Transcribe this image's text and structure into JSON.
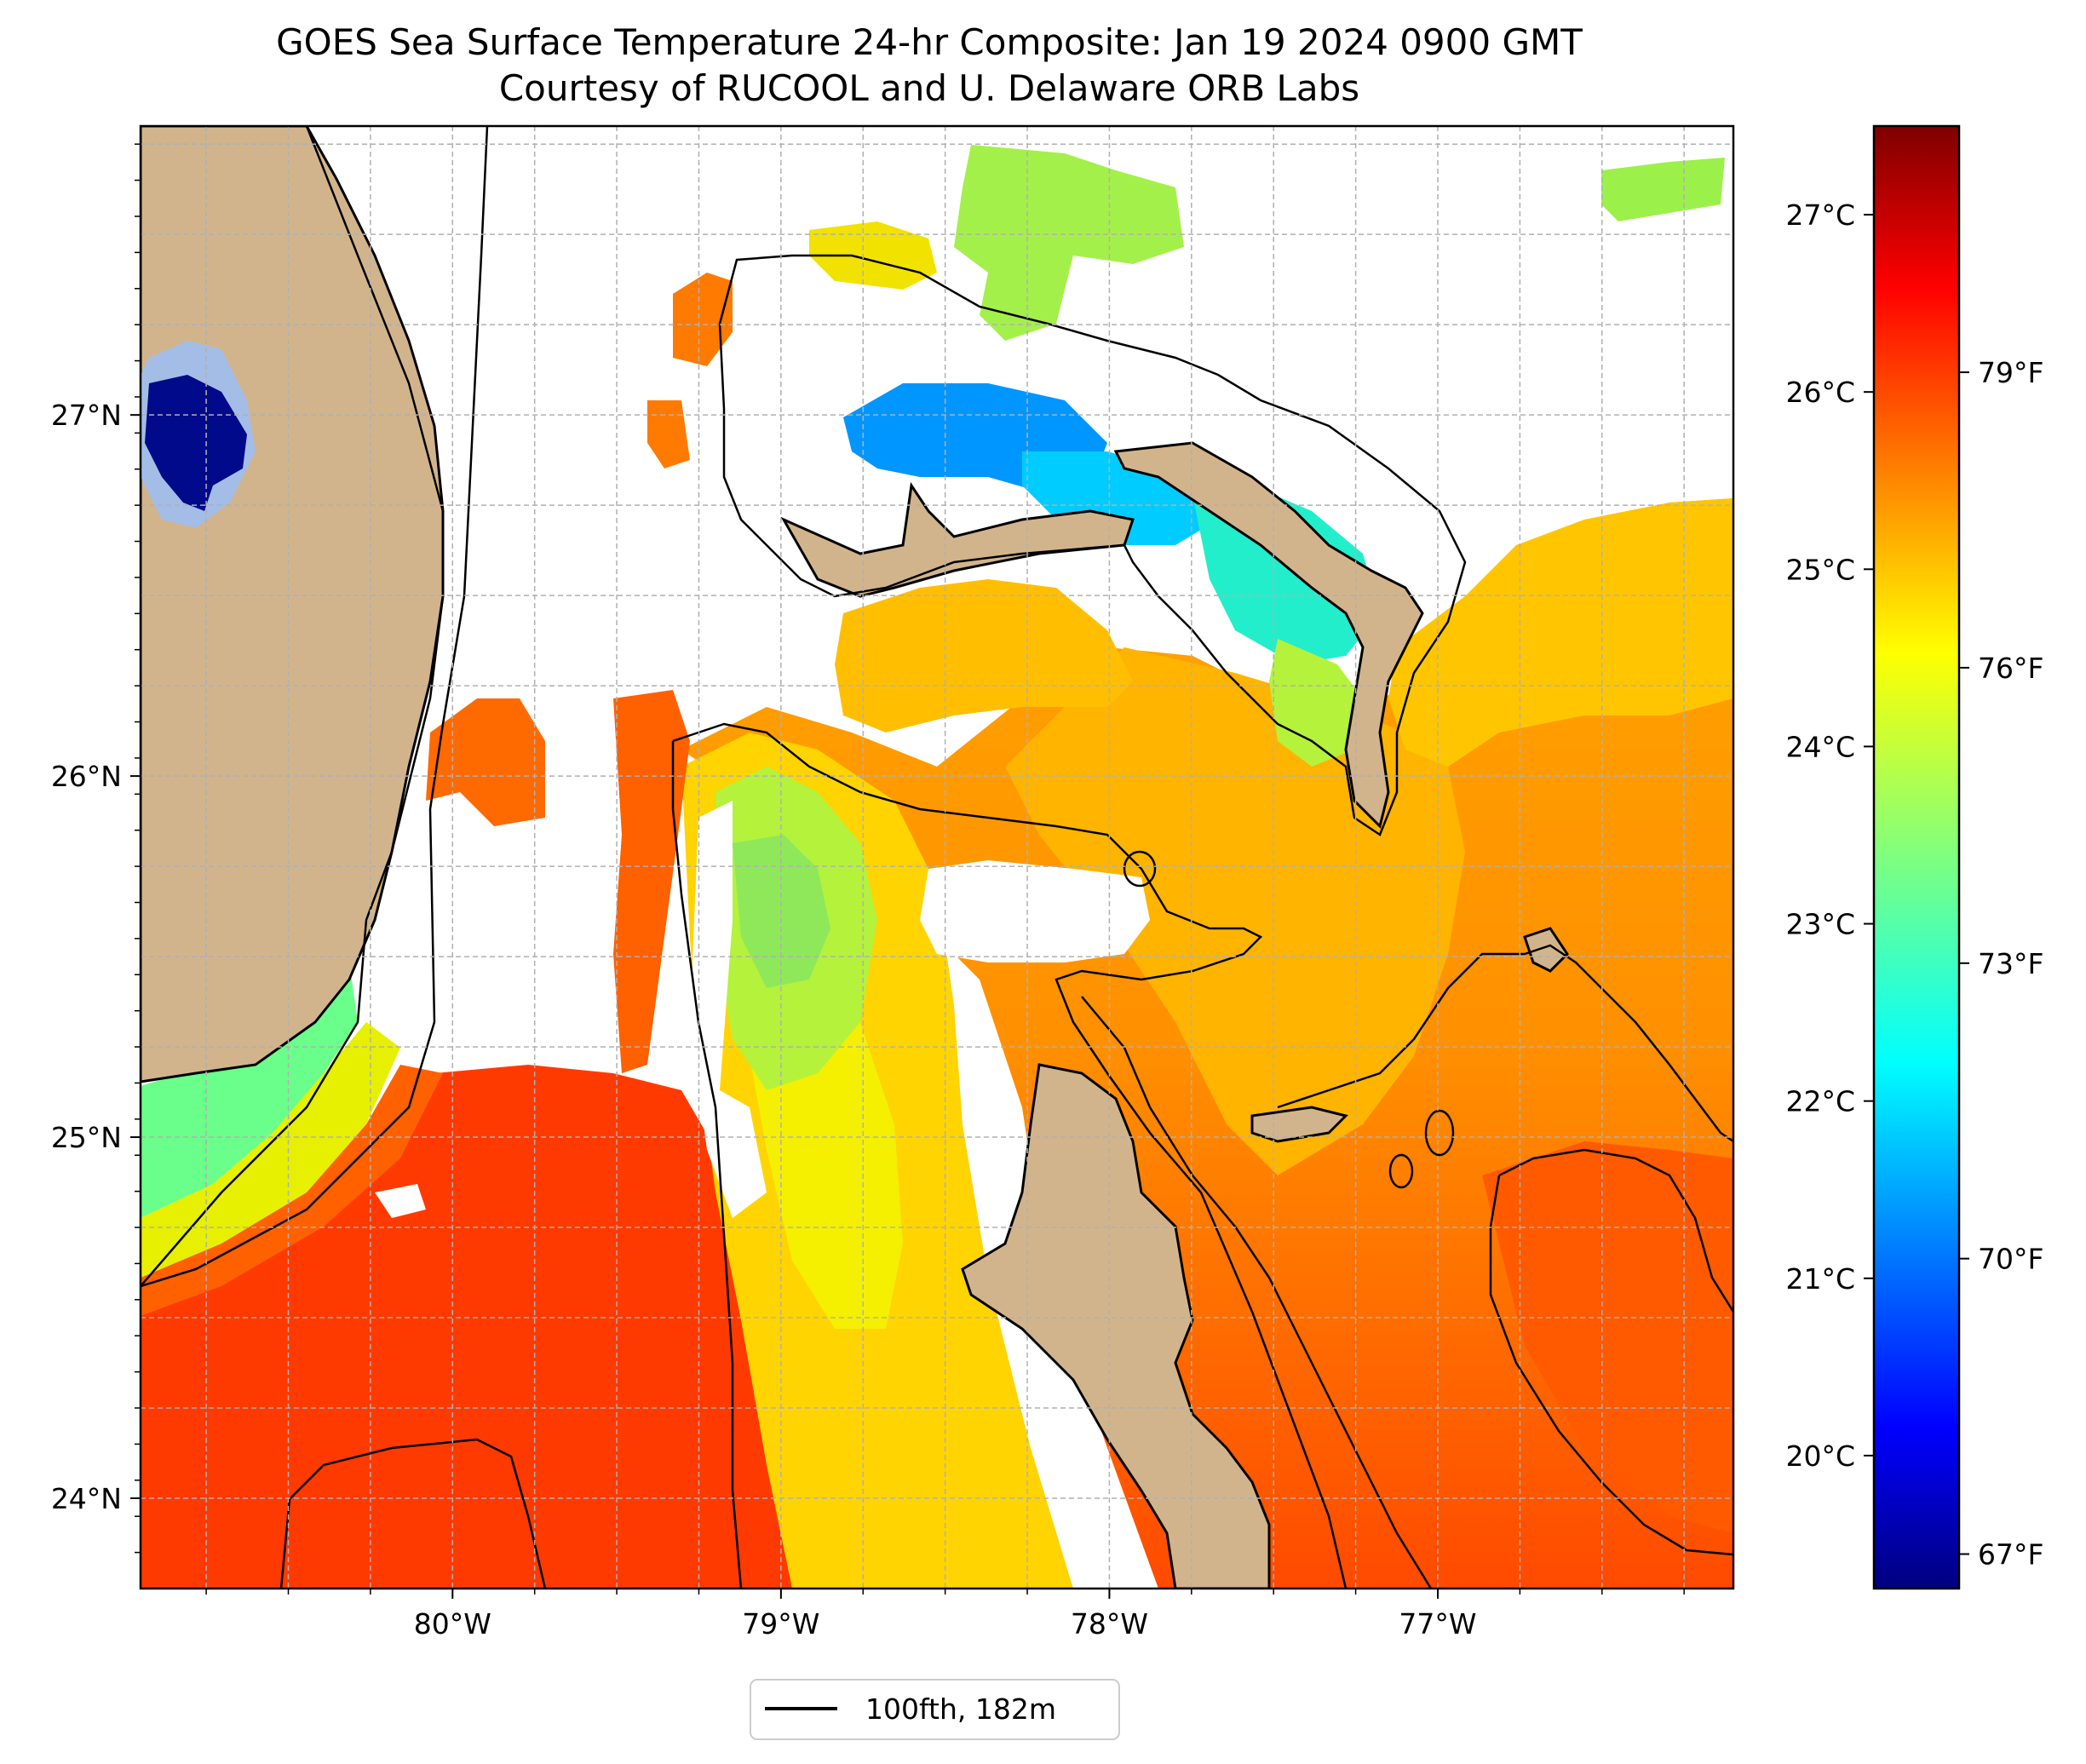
{
  "title": {
    "line1": "GOES Sea Surface Temperature 24-hr Composite: Jan 19 2024 0900 GMT",
    "line2": "Courtesy of RUCOOL and U. Delaware ORB Labs"
  },
  "map": {
    "region": "Florida Straits / northern Bahamas",
    "lon_range": [
      -80.95,
      -76.1
    ],
    "lat_range": [
      23.75,
      27.8
    ],
    "lon_ticks": [
      {
        "value": -80,
        "label": "80°W"
      },
      {
        "value": -79,
        "label": "79°W"
      },
      {
        "value": -78,
        "label": "78°W"
      },
      {
        "value": -77,
        "label": "77°W"
      }
    ],
    "lat_ticks": [
      {
        "value": 27,
        "label": "27°N"
      },
      {
        "value": 26,
        "label": "26°N"
      },
      {
        "value": 25,
        "label": "25°N"
      },
      {
        "value": 24,
        "label": "24°N"
      }
    ],
    "gridlines": true
  },
  "colorbar": {
    "colormap": "jet",
    "celsius_ticks": [
      {
        "value": 27,
        "label": "27°C"
      },
      {
        "value": 26,
        "label": "26°C"
      },
      {
        "value": 25,
        "label": "25°C"
      },
      {
        "value": 24,
        "label": "24°C"
      },
      {
        "value": 23,
        "label": "23°C"
      },
      {
        "value": 22,
        "label": "22°C"
      },
      {
        "value": 21,
        "label": "21°C"
      },
      {
        "value": 20,
        "label": "20°C"
      }
    ],
    "fahrenheit_ticks": [
      {
        "value": 79,
        "label": "79°F"
      },
      {
        "value": 76,
        "label": "76°F"
      },
      {
        "value": 73,
        "label": "73°F"
      },
      {
        "value": 70,
        "label": "70°F"
      },
      {
        "value": 67,
        "label": "67°F"
      }
    ],
    "colors": [
      "#00007f",
      "#0000ff",
      "#007fff",
      "#00ffff",
      "#7fff7f",
      "#ffff00",
      "#ff7f00",
      "#ff0000",
      "#7f0000"
    ]
  },
  "legend": {
    "entries": [
      {
        "label": "100fth, 182m",
        "color": "#000000"
      }
    ]
  },
  "colors": {
    "land": "#d2b48c",
    "lake_outer": "#a3bde6",
    "lake_inner": "#000a8a",
    "no_data": "#ffffff",
    "sst_warm": "#ff3300",
    "sst_orange": "#ff7f00",
    "sst_gold": "#ffc000",
    "sst_yellow": "#ffff00",
    "sst_green": "#9cf04a",
    "sst_cyan": "#00ddff",
    "sst_blue": "#0090ff"
  }
}
